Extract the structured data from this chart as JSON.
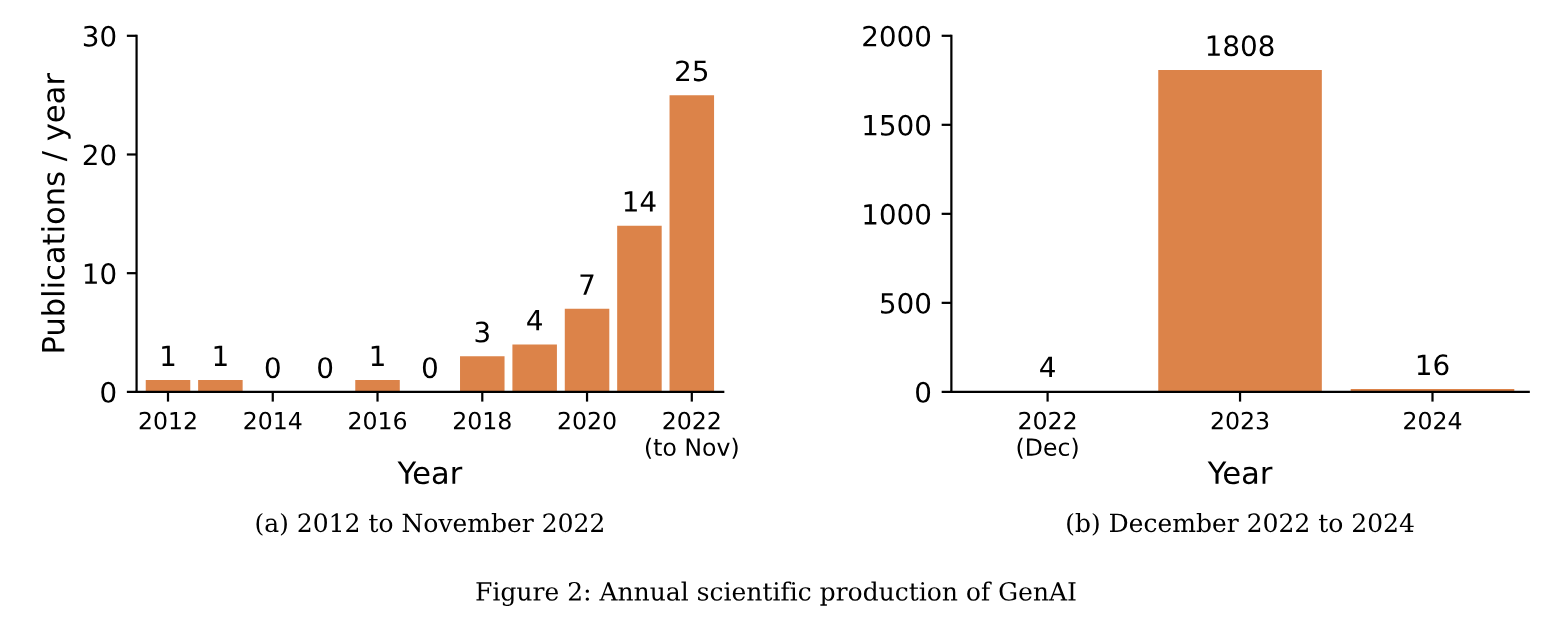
{
  "chart_data": [
    {
      "type": "bar",
      "title": "(a) 2012 to November 2022",
      "xlabel": "Year",
      "ylabel": "Publications / year",
      "x": [
        2012,
        2013,
        2014,
        2015,
        2016,
        2017,
        2018,
        2019,
        2020,
        2021,
        2022
      ],
      "values": [
        1,
        1,
        0,
        0,
        1,
        0,
        3,
        4,
        7,
        14,
        25
      ],
      "color": "#dc8349",
      "xlim": [
        2011.4,
        2022.6
      ],
      "xticks": [
        2012,
        2014,
        2016,
        2018,
        2020,
        {
          "value": 2022,
          "label": "2022\n(to Nov)"
        }
      ],
      "ylim": [
        0,
        30
      ],
      "yticks": [
        0,
        10,
        20,
        30
      ],
      "data_labels": true,
      "grid": false,
      "legend": false,
      "annotations": [
        "Figure 2: Annual scientific production of GenAI"
      ]
    },
    {
      "type": "bar",
      "title": "(b) December 2022 to 2024",
      "xlabel": "Year",
      "categories": [
        "2022\n(Dec)",
        "2023",
        "2024"
      ],
      "values": [
        4,
        1808,
        16
      ],
      "color": "#dc8349",
      "ylim": [
        0,
        2000
      ],
      "yticks": [
        0,
        500,
        1000,
        1500,
        2000
      ],
      "data_labels": true,
      "grid": false,
      "legend": false
    }
  ]
}
